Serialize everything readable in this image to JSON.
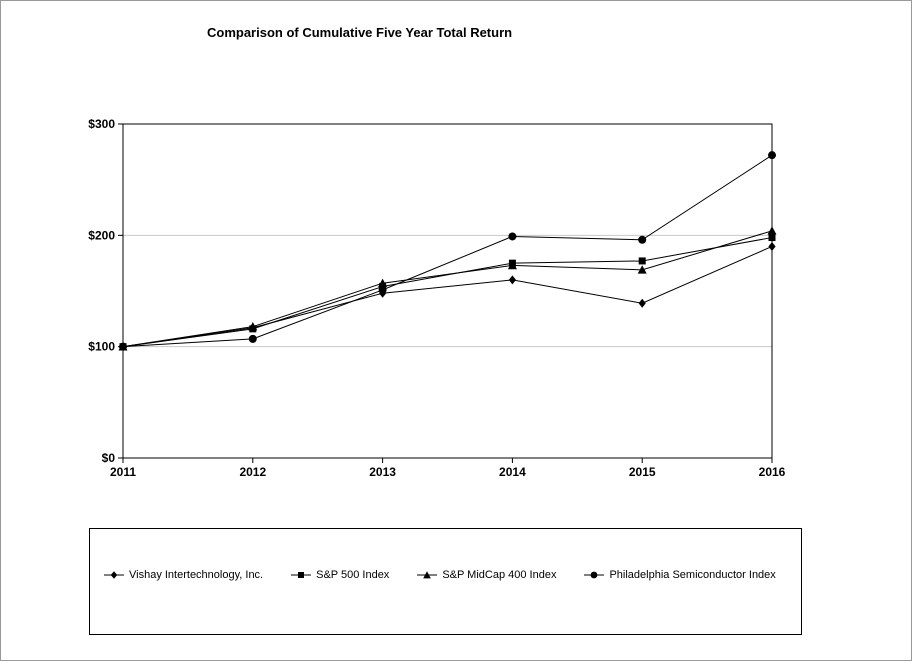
{
  "page": {
    "title": "Comparison of Cumulative Five Year Total Return"
  },
  "chart_data": {
    "type": "line",
    "title": "Comparison of Cumulative Five Year Total Return",
    "categories": [
      "2011",
      "2012",
      "2013",
      "2014",
      "2015",
      "2016"
    ],
    "series": [
      {
        "name": "Vishay Intertechnology, Inc.",
        "marker": "diamond",
        "values": [
          100,
          117,
          148,
          160,
          139,
          190
        ]
      },
      {
        "name": "S&P 500 Index",
        "marker": "square",
        "values": [
          100,
          116,
          154,
          175,
          177,
          198
        ]
      },
      {
        "name": "S&P MidCap 400 Index",
        "marker": "triangle",
        "values": [
          100,
          118,
          157,
          173,
          169,
          204
        ]
      },
      {
        "name": "Philadelphia Semiconductor Index",
        "marker": "circle",
        "values": [
          100,
          107,
          151,
          199,
          196,
          272
        ]
      }
    ],
    "y_axis": {
      "min": 0,
      "max": 300,
      "ticks": [
        {
          "label": "$0",
          "value": 0
        },
        {
          "label": "$100",
          "value": 100
        },
        {
          "label": "$200",
          "value": 200
        },
        {
          "label": "$300",
          "value": 300
        }
      ]
    },
    "grid": {
      "horizontal": [
        100,
        200
      ],
      "color": "#c8c8c8"
    },
    "line_color": "#000000",
    "marker_color": "#000000",
    "legend_position": "bottom"
  }
}
